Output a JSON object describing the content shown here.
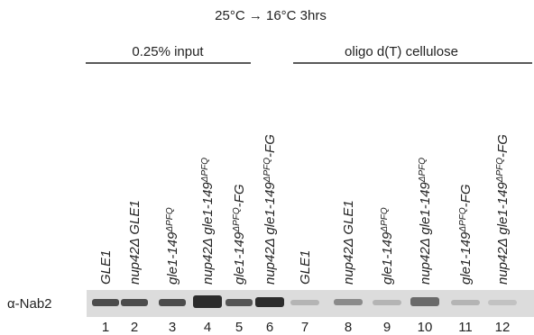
{
  "title": "25°C → 16°C 3hrs",
  "groups": [
    "0.25% input",
    "oligo d(T) cellulose"
  ],
  "antibody": "α-Nab2",
  "lanes": [
    {
      "number": 1,
      "base": "GLE1"
    },
    {
      "number": 2,
      "base": "nup42Δ GLE1"
    },
    {
      "number": 3,
      "base": "gle1-149",
      "sup": "ΔPFQ"
    },
    {
      "number": 4,
      "base": "nup42Δ gle1-149",
      "sup": "ΔPFQ"
    },
    {
      "number": 5,
      "base": "gle1-149",
      "sup": "ΔPFQ",
      "tail": "-FG"
    },
    {
      "number": 6,
      "base": "nup42Δ gle1-149",
      "sup": "ΔPFQ",
      "tail": "-FG"
    },
    {
      "number": 7,
      "base": "GLE1"
    },
    {
      "number": 8,
      "base": "nup42Δ GLE1"
    },
    {
      "number": 9,
      "base": "gle1-149",
      "sup": "ΔPFQ"
    },
    {
      "number": 10,
      "base": "nup42Δ gle1-149",
      "sup": "ΔPFQ"
    },
    {
      "number": 11,
      "base": "gle1-149",
      "sup": "ΔPFQ",
      "tail": "-FG"
    },
    {
      "number": 12,
      "base": "nup42Δ gle1-149",
      "sup": "ΔPFQ",
      "tail": "-FG"
    }
  ]
}
